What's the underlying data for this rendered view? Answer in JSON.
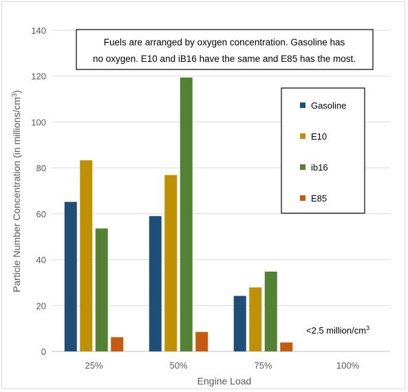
{
  "chart_data": {
    "type": "bar",
    "categories": [
      "25%",
      "50%",
      "75%",
      "100%"
    ],
    "series": [
      {
        "name": "Gasoline",
        "color": "#1f4e79",
        "values": [
          65.2,
          59.0,
          24.2,
          null
        ]
      },
      {
        "name": "E10",
        "color": "#bf9000",
        "values": [
          83.3,
          76.9,
          27.9,
          null
        ]
      },
      {
        "name": "ib16",
        "color": "#548235",
        "values": [
          53.6,
          119.4,
          34.8,
          null
        ]
      },
      {
        "name": "E85",
        "color": "#c55a11",
        "values": [
          6.2,
          8.5,
          3.9,
          null
        ]
      }
    ],
    "xlabel": "Engine Load",
    "ylabel_main": "Particle Number Concentration (in millions/cm",
    "ylabel_sup": "3",
    "ylabel_tail": ")",
    "ylim": [
      0,
      140
    ],
    "yticks": [
      "0",
      "20",
      "40",
      "60",
      "80",
      "100",
      "120",
      "140"
    ],
    "grid": true,
    "legend_position": "right",
    "annotation": {
      "line1": "Fuels are arranged by oxygen concentration.  Gasoline has",
      "line2": "no oxygen.  E10 and iB16 have the same and E85 has the most."
    },
    "note": {
      "main": "<2.5 million/cm",
      "sup": "3"
    }
  }
}
